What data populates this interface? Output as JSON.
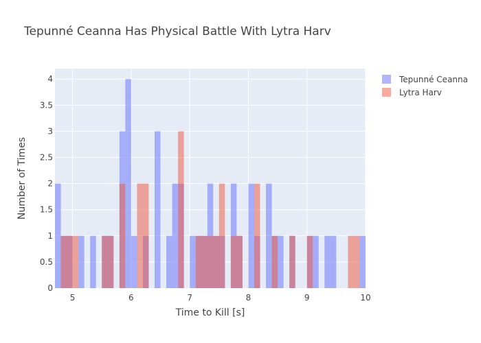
{
  "chart_data": {
    "type": "bar",
    "title": "Tepunné Ceanna Has Physical Battle With Lytra Harv",
    "xlabel": "Time to Kill [s]",
    "ylabel": "Number of Times",
    "xlim": [
      4.7,
      10
    ],
    "ylim": [
      0,
      4.2
    ],
    "bin_width": 0.1,
    "barmode": "overlay",
    "x_ticks": [
      "5",
      "6",
      "7",
      "8",
      "9",
      "10"
    ],
    "x_tick_values": [
      5,
      6,
      7,
      8,
      9,
      10
    ],
    "y_ticks": [
      "0",
      "0.5",
      "1",
      "1.5",
      "2",
      "2.5",
      "3",
      "3.5",
      "4"
    ],
    "y_tick_values": [
      0,
      0.5,
      1,
      1.5,
      2,
      2.5,
      3,
      3.5,
      4
    ],
    "grid": true,
    "legend_position": "top-right",
    "series": [
      {
        "name": "Tepunné Ceanna",
        "color": "#636efa",
        "bins": [
          [
            4.7,
            2
          ],
          [
            4.8,
            1
          ],
          [
            4.9,
            1
          ],
          [
            5.1,
            1
          ],
          [
            5.3,
            1
          ],
          [
            5.5,
            1
          ],
          [
            5.6,
            1
          ],
          [
            5.8,
            3
          ],
          [
            5.9,
            4
          ],
          [
            6.0,
            1
          ],
          [
            6.2,
            1
          ],
          [
            6.4,
            3
          ],
          [
            6.6,
            1
          ],
          [
            6.7,
            2
          ],
          [
            6.8,
            2
          ],
          [
            7.0,
            1
          ],
          [
            7.1,
            1
          ],
          [
            7.2,
            1
          ],
          [
            7.3,
            2
          ],
          [
            7.4,
            1
          ],
          [
            7.5,
            1
          ],
          [
            7.7,
            2
          ],
          [
            7.8,
            1
          ],
          [
            8.0,
            2
          ],
          [
            8.1,
            1
          ],
          [
            8.3,
            2
          ],
          [
            8.4,
            1
          ],
          [
            8.5,
            1
          ],
          [
            8.7,
            1
          ],
          [
            9.0,
            1
          ],
          [
            9.1,
            1
          ],
          [
            9.3,
            1
          ],
          [
            9.4,
            1
          ],
          [
            9.9,
            1
          ]
        ]
      },
      {
        "name": "Lytra Harv",
        "color": "#ef553b",
        "bins": [
          [
            4.8,
            1
          ],
          [
            4.9,
            1
          ],
          [
            5.0,
            1
          ],
          [
            5.5,
            1
          ],
          [
            5.6,
            1
          ],
          [
            5.8,
            2
          ],
          [
            6.1,
            2
          ],
          [
            6.2,
            2
          ],
          [
            6.8,
            3
          ],
          [
            7.1,
            1
          ],
          [
            7.2,
            1
          ],
          [
            7.3,
            1
          ],
          [
            7.4,
            1
          ],
          [
            7.5,
            2
          ],
          [
            7.7,
            1
          ],
          [
            7.8,
            1
          ],
          [
            8.1,
            2
          ],
          [
            8.4,
            1
          ],
          [
            8.7,
            1
          ],
          [
            9.0,
            1
          ],
          [
            9.7,
            1
          ],
          [
            9.8,
            1
          ]
        ]
      }
    ]
  }
}
